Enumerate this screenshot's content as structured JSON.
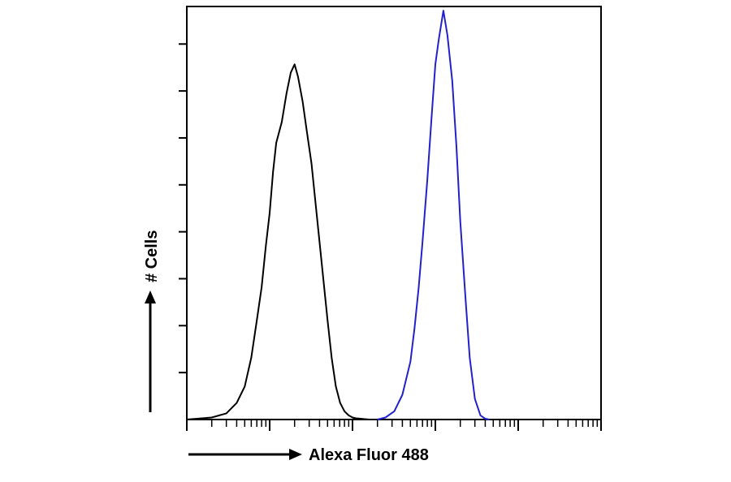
{
  "chart_data": {
    "type": "area",
    "title": "",
    "xlabel": "Alexa Fluor 488",
    "ylabel": "# Cells",
    "x_scale": "log",
    "xlim": [
      1,
      100000
    ],
    "ylim": [
      0,
      1
    ],
    "x_tick_labels": [],
    "y_tick_labels": [],
    "grid": false,
    "series": [
      {
        "color": "#000000",
        "x": [
          1,
          2,
          3,
          4,
          5,
          6,
          7,
          8,
          9,
          10,
          11,
          12,
          14,
          16,
          18,
          20,
          22,
          25,
          28,
          32,
          36,
          40,
          45,
          50,
          56,
          63,
          71,
          80,
          90,
          100,
          110,
          125,
          140,
          160,
          180,
          200
        ],
        "values": [
          0.0,
          0.005,
          0.015,
          0.04,
          0.08,
          0.15,
          0.24,
          0.32,
          0.42,
          0.5,
          0.6,
          0.67,
          0.72,
          0.79,
          0.84,
          0.86,
          0.83,
          0.77,
          0.7,
          0.62,
          0.52,
          0.43,
          0.33,
          0.24,
          0.15,
          0.08,
          0.04,
          0.02,
          0.01,
          0.005,
          0.003,
          0.002,
          0.001,
          0.0,
          0.0,
          0.0
        ]
      },
      {
        "color": "#2222cc",
        "x": [
          200,
          250,
          320,
          400,
          500,
          560,
          630,
          700,
          800,
          900,
          1000,
          1100,
          1250,
          1400,
          1600,
          1800,
          2000,
          2300,
          2600,
          3000,
          3500,
          4000,
          4500
        ],
        "values": [
          0.0,
          0.005,
          0.02,
          0.06,
          0.14,
          0.22,
          0.32,
          0.43,
          0.58,
          0.73,
          0.86,
          0.92,
          0.99,
          0.93,
          0.82,
          0.66,
          0.48,
          0.3,
          0.15,
          0.05,
          0.01,
          0.002,
          0.0
        ]
      }
    ]
  }
}
